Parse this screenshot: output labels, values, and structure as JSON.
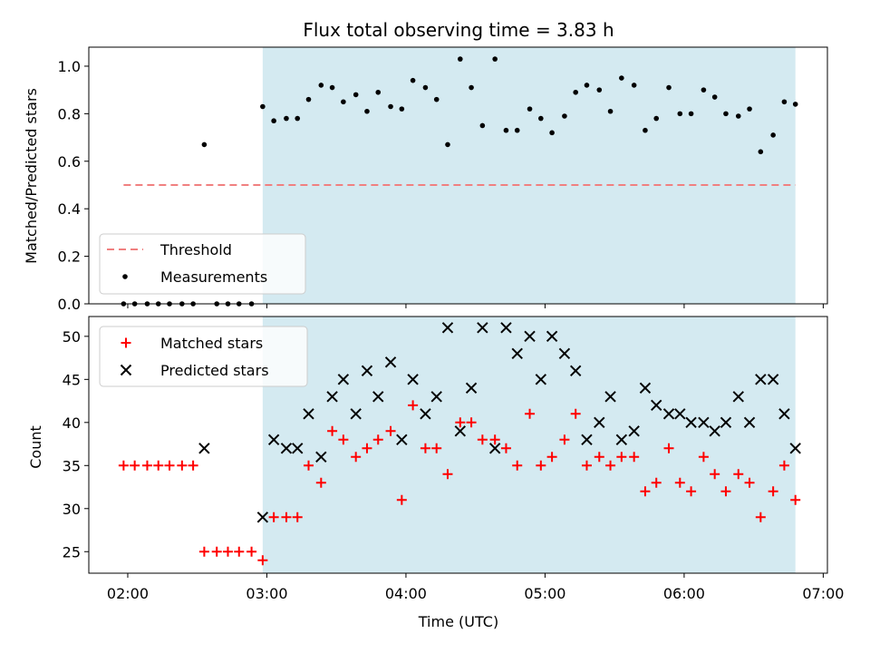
{
  "chart_data": {
    "type": "scatter",
    "title": "Flux total observing time = 3.83 h",
    "xlabel": "Time (UTC)",
    "x_ticks": [
      "02:00",
      "03:00",
      "04:00",
      "05:00",
      "06:00",
      "07:00"
    ],
    "x_range_hours": [
      1.72,
      7.03
    ],
    "observing_window_hours": [
      2.97,
      6.8
    ],
    "highlight_color": "#d4eaf1",
    "top_panel": {
      "ylabel": "Matched/Predicted stars",
      "ylim": [
        0,
        1.08
      ],
      "y_ticks": [
        "0.0",
        "0.2",
        "0.4",
        "0.6",
        "0.8",
        "1.0"
      ],
      "threshold": {
        "name": "Threshold",
        "value": 0.5,
        "x_range_hours": [
          1.97,
          6.8
        ],
        "color": "#f08080"
      },
      "measurements": {
        "name": "Measurements",
        "color": "#000000",
        "points": [
          [
            1.97,
            0
          ],
          [
            2.05,
            0
          ],
          [
            2.14,
            0
          ],
          [
            2.22,
            0
          ],
          [
            2.3,
            0
          ],
          [
            2.39,
            0
          ],
          [
            2.47,
            0
          ],
          [
            2.55,
            0.67
          ],
          [
            2.64,
            0
          ],
          [
            2.72,
            0
          ],
          [
            2.8,
            0
          ],
          [
            2.89,
            0
          ],
          [
            2.97,
            0.83
          ],
          [
            3.05,
            0.77
          ],
          [
            3.14,
            0.78
          ],
          [
            3.22,
            0.78
          ],
          [
            3.3,
            0.86
          ],
          [
            3.39,
            0.92
          ],
          [
            3.47,
            0.91
          ],
          [
            3.55,
            0.85
          ],
          [
            3.64,
            0.88
          ],
          [
            3.72,
            0.81
          ],
          [
            3.8,
            0.89
          ],
          [
            3.89,
            0.83
          ],
          [
            3.97,
            0.82
          ],
          [
            4.05,
            0.94
          ],
          [
            4.14,
            0.91
          ],
          [
            4.22,
            0.86
          ],
          [
            4.3,
            0.67
          ],
          [
            4.39,
            1.03
          ],
          [
            4.47,
            0.91
          ],
          [
            4.55,
            0.75
          ],
          [
            4.64,
            1.03
          ],
          [
            4.72,
            0.73
          ],
          [
            4.8,
            0.73
          ],
          [
            4.89,
            0.82
          ],
          [
            4.97,
            0.78
          ],
          [
            5.05,
            0.72
          ],
          [
            5.14,
            0.79
          ],
          [
            5.22,
            0.89
          ],
          [
            5.3,
            0.92
          ],
          [
            5.39,
            0.9
          ],
          [
            5.47,
            0.81
          ],
          [
            5.55,
            0.95
          ],
          [
            5.64,
            0.92
          ],
          [
            5.72,
            0.73
          ],
          [
            5.8,
            0.78
          ],
          [
            5.89,
            0.91
          ],
          [
            5.97,
            0.8
          ],
          [
            6.05,
            0.8
          ],
          [
            6.14,
            0.9
          ],
          [
            6.22,
            0.87
          ],
          [
            6.3,
            0.8
          ],
          [
            6.39,
            0.79
          ],
          [
            6.47,
            0.82
          ],
          [
            6.55,
            0.64
          ],
          [
            6.64,
            0.71
          ],
          [
            6.72,
            0.85
          ],
          [
            6.8,
            0.84
          ]
        ]
      },
      "legend_placement": "lower-left"
    },
    "bottom_panel": {
      "ylabel": "Count",
      "ylim": [
        22.5,
        52.3
      ],
      "y_ticks": [
        "25",
        "30",
        "35",
        "40",
        "45",
        "50"
      ],
      "y_tick_values": [
        25,
        30,
        35,
        40,
        45,
        50
      ],
      "matched": {
        "name": "Matched stars",
        "color": "#ff0000",
        "points": [
          [
            1.97,
            35
          ],
          [
            2.05,
            35
          ],
          [
            2.14,
            35
          ],
          [
            2.22,
            35
          ],
          [
            2.3,
            35
          ],
          [
            2.39,
            35
          ],
          [
            2.47,
            35
          ],
          [
            2.55,
            25
          ],
          [
            2.64,
            25
          ],
          [
            2.72,
            25
          ],
          [
            2.8,
            25
          ],
          [
            2.89,
            25
          ],
          [
            2.97,
            24
          ],
          [
            3.05,
            29
          ],
          [
            3.14,
            29
          ],
          [
            3.22,
            29
          ],
          [
            3.3,
            35
          ],
          [
            3.39,
            33
          ],
          [
            3.47,
            39
          ],
          [
            3.55,
            38
          ],
          [
            3.64,
            36
          ],
          [
            3.72,
            37
          ],
          [
            3.8,
            38
          ],
          [
            3.89,
            39
          ],
          [
            3.97,
            31
          ],
          [
            4.05,
            42
          ],
          [
            4.14,
            37
          ],
          [
            4.22,
            37
          ],
          [
            4.3,
            34
          ],
          [
            4.39,
            40
          ],
          [
            4.47,
            40
          ],
          [
            4.55,
            38
          ],
          [
            4.64,
            38
          ],
          [
            4.72,
            37
          ],
          [
            4.8,
            35
          ],
          [
            4.89,
            41
          ],
          [
            4.97,
            35
          ],
          [
            5.05,
            36
          ],
          [
            5.14,
            38
          ],
          [
            5.22,
            41
          ],
          [
            5.3,
            35
          ],
          [
            5.39,
            36
          ],
          [
            5.47,
            35
          ],
          [
            5.55,
            36
          ],
          [
            5.64,
            36
          ],
          [
            5.72,
            32
          ],
          [
            5.8,
            33
          ],
          [
            5.89,
            37
          ],
          [
            5.97,
            33
          ],
          [
            6.05,
            32
          ],
          [
            6.14,
            36
          ],
          [
            6.22,
            34
          ],
          [
            6.3,
            32
          ],
          [
            6.39,
            34
          ],
          [
            6.47,
            33
          ],
          [
            6.55,
            29
          ],
          [
            6.64,
            32
          ],
          [
            6.72,
            35
          ],
          [
            6.8,
            31
          ]
        ]
      },
      "predicted": {
        "name": "Predicted stars",
        "color": "#000000",
        "points": [
          [
            2.55,
            37
          ],
          [
            2.97,
            29
          ],
          [
            3.05,
            38
          ],
          [
            3.14,
            37
          ],
          [
            3.22,
            37
          ],
          [
            3.3,
            41
          ],
          [
            3.39,
            36
          ],
          [
            3.47,
            43
          ],
          [
            3.55,
            45
          ],
          [
            3.64,
            41
          ],
          [
            3.72,
            46
          ],
          [
            3.8,
            43
          ],
          [
            3.89,
            47
          ],
          [
            3.97,
            38
          ],
          [
            4.05,
            45
          ],
          [
            4.14,
            41
          ],
          [
            4.22,
            43
          ],
          [
            4.3,
            51
          ],
          [
            4.39,
            39
          ],
          [
            4.47,
            44
          ],
          [
            4.55,
            51
          ],
          [
            4.64,
            37
          ],
          [
            4.72,
            51
          ],
          [
            4.8,
            48
          ],
          [
            4.89,
            50
          ],
          [
            4.97,
            45
          ],
          [
            5.05,
            50
          ],
          [
            5.14,
            48
          ],
          [
            5.22,
            46
          ],
          [
            5.3,
            38
          ],
          [
            5.39,
            40
          ],
          [
            5.47,
            43
          ],
          [
            5.55,
            38
          ],
          [
            5.64,
            39
          ],
          [
            5.72,
            44
          ],
          [
            5.8,
            42
          ],
          [
            5.89,
            41
          ],
          [
            5.97,
            41
          ],
          [
            6.05,
            40
          ],
          [
            6.14,
            40
          ],
          [
            6.22,
            39
          ],
          [
            6.3,
            40
          ],
          [
            6.39,
            43
          ],
          [
            6.47,
            40
          ],
          [
            6.55,
            45
          ],
          [
            6.64,
            45
          ],
          [
            6.72,
            41
          ],
          [
            6.8,
            37
          ]
        ]
      },
      "legend_placement": "upper-left"
    }
  }
}
